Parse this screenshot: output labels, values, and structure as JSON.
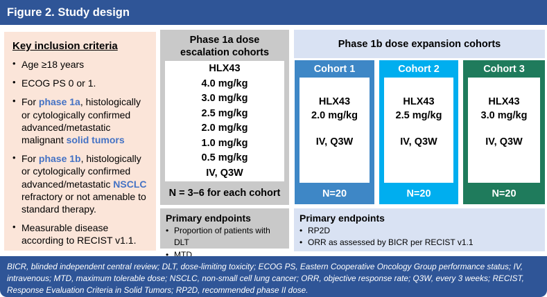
{
  "header": {
    "title": "Figure 2. Study design"
  },
  "colors": {
    "header_bar": "#2F5597",
    "inclusion_panel": "#FBE5D9",
    "phase1a_panel": "#C9C9C9",
    "phase1b_panel": "#D9E2F3",
    "cohort1": "#3E87C6",
    "cohort2": "#00AEEF",
    "cohort3": "#1F7B5C",
    "accent_text": "#4472C4"
  },
  "inclusion": {
    "heading": "Key inclusion criteria",
    "bullets": [
      [
        {
          "t": "Age ≥18 years"
        }
      ],
      [
        {
          "t": "ECOG PS 0 or 1."
        }
      ],
      [
        {
          "t": "For "
        },
        {
          "t": "phase 1a",
          "b": true
        },
        {
          "t": ", histologically or cytologically confirmed advanced/metastatic malignant "
        },
        {
          "t": "solid tumors",
          "b": true
        }
      ],
      [
        {
          "t": "For "
        },
        {
          "t": "phase 1b",
          "b": true
        },
        {
          "t": ", histologically or cytologically confirmed advanced/metastatic "
        },
        {
          "t": "NSCLC",
          "b": true
        },
        {
          "t": " refractory or not amenable to standard therapy."
        }
      ],
      [
        {
          "t": "Measurable disease according to RECIST v1.1."
        }
      ]
    ]
  },
  "phase1a": {
    "title": "Phase 1a dose escalation cohorts",
    "drug": "HLX43",
    "doses": [
      "4.0 mg/kg",
      "3.0 mg/kg",
      "2.5 mg/kg",
      "2.0 mg/kg",
      "1.0 mg/kg",
      "0.5 mg/kg"
    ],
    "route": "IV, Q3W",
    "cohort_note": "N = 3–6 for each cohort",
    "endpoints": {
      "heading": "Primary endpoints",
      "items": [
        "Proportion of patients with DLT",
        "MTD"
      ]
    }
  },
  "phase1b": {
    "title": "Phase 1b dose expansion cohorts",
    "cohorts": [
      {
        "label": "Cohort 1",
        "drug": "HLX43",
        "dose": "2.0 mg/kg",
        "route": "IV, Q3W",
        "n": "N=20",
        "color": "#3E87C6"
      },
      {
        "label": "Cohort 2",
        "drug": "HLX43",
        "dose": "2.5 mg/kg",
        "route": "IV, Q3W",
        "n": "N=20",
        "color": "#00AEEF"
      },
      {
        "label": "Cohort 3",
        "drug": "HLX43",
        "dose": "3.0 mg/kg",
        "route": "IV, Q3W",
        "n": "N=20",
        "color": "#1F7B5C"
      }
    ],
    "endpoints": {
      "heading": "Primary endpoints",
      "items": [
        "RP2D",
        "ORR as assessed by BICR per RECIST v1.1"
      ]
    }
  },
  "footer": {
    "text": "BICR, blinded independent central review; DLT, dose-limiting toxicity; ECOG PS, Eastern Cooperative Oncology Group performance status; IV, intravenous; MTD, maximum tolerable dose; NSCLC, non-small cell lung cancer; ORR, objective response rate; Q3W, every 3 weeks; RECIST, Response Evaluation Criteria in Solid Tumors; RP2D, recommended phase II dose."
  }
}
